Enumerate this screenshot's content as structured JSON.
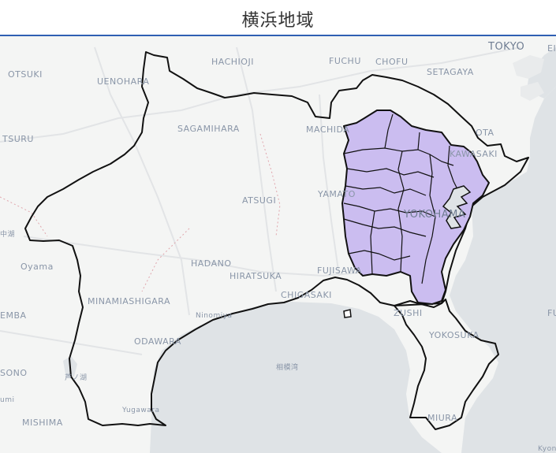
{
  "header": {
    "title": "横浜地域"
  },
  "map": {
    "colors": {
      "land": "#f4f5f4",
      "sea": "#dfe3e6",
      "highlight": "#cbbdf0",
      "outline": "#111111",
      "road": "#e2e4e6"
    },
    "labels": {
      "tokyo": "TOKYO",
      "hachioji": "HACHIOJI",
      "fuchu": "FUCHU",
      "chofu": "CHOFU",
      "setagaya": "SETAGAYA",
      "otsuki": "OTSUKI",
      "uenohara": "UENOHARA",
      "sagamihara": "SAGAMIHARA",
      "machida": "MACHIDA",
      "ota": "OTA",
      "kawasaki": "KAWASAKI",
      "tsuru": "TSURU",
      "atsugi": "ATSUGI",
      "yamato": "YAMATO",
      "yokohama": "YOKOHAMA",
      "oyama": "Oyama",
      "hadano": "HADANO",
      "hiratsuka": "HIRATSUKA",
      "fujisawa": "FUJISAWA",
      "chigasaki": "CHIGASAKI",
      "minamiashigara": "MINAMIASHIGARA",
      "ninomiya": "Ninomiya",
      "zushi": "ZUSHI",
      "yokosuka": "YOKOSUKA",
      "odawara": "ODAWARA",
      "sagamiwan": "相模湾",
      "yugawara": "Yugawara",
      "miura": "MIURA",
      "mishima": "MISHIMA",
      "kyoto_edge": "Kyon",
      "emba": "EMBA",
      "sono": "SONO",
      "umi": "umi",
      "lake": "芦ノ湖",
      "naka": "中湖",
      "e_edge": "EI",
      "fu_edge": "FU"
    }
  }
}
